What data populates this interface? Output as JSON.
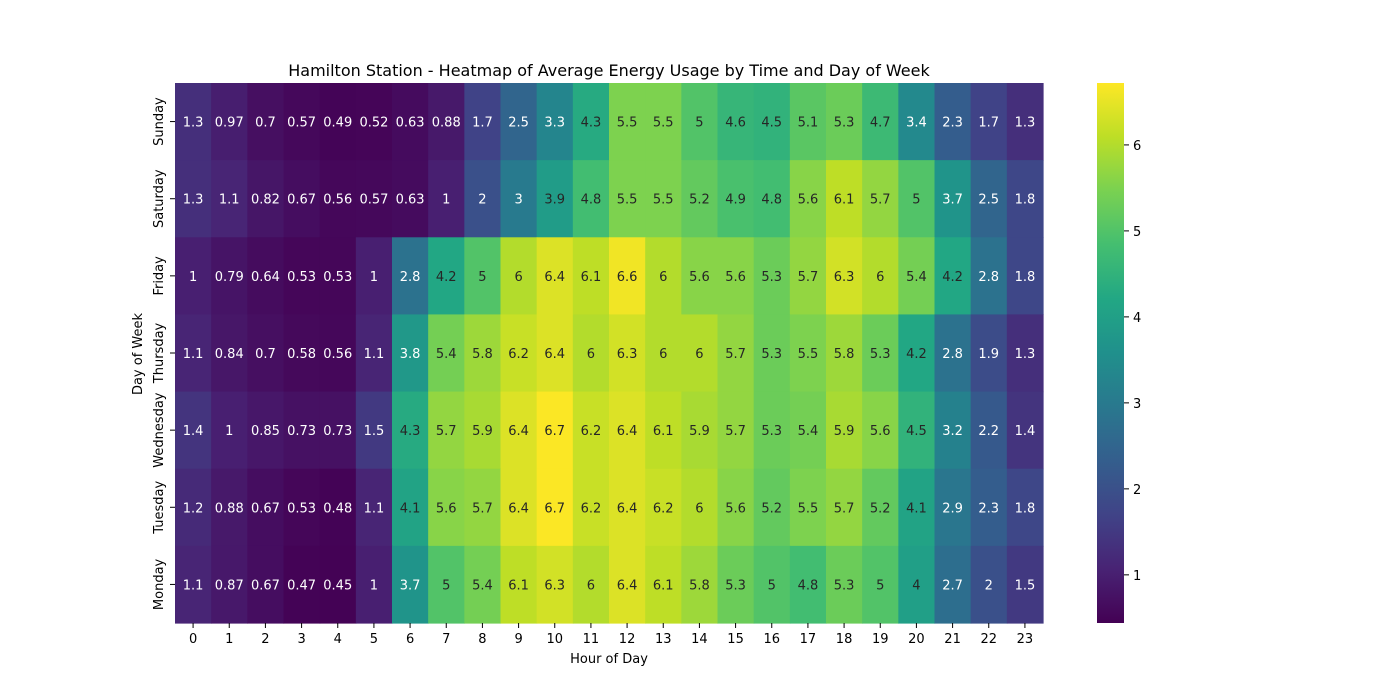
{
  "chart_data": {
    "type": "heatmap",
    "title": "Hamilton Station - Heatmap of Average Energy Usage by Time and Day of Week",
    "xlabel": "Hour of Day",
    "ylabel": "Day of Week",
    "x": [
      "0",
      "1",
      "2",
      "3",
      "4",
      "5",
      "6",
      "7",
      "8",
      "9",
      "10",
      "11",
      "12",
      "13",
      "14",
      "15",
      "16",
      "17",
      "18",
      "19",
      "20",
      "21",
      "22",
      "23"
    ],
    "y": [
      "Sunday",
      "Saturday",
      "Friday",
      "Thursday",
      "Wednesday",
      "Tuesday",
      "Monday"
    ],
    "values": [
      [
        1.3,
        0.97,
        0.7,
        0.57,
        0.49,
        0.52,
        0.63,
        0.88,
        1.7,
        2.5,
        3.3,
        4.3,
        5.5,
        5.5,
        5,
        4.6,
        4.5,
        5.1,
        5.3,
        4.7,
        3.4,
        2.3,
        1.7,
        1.3
      ],
      [
        1.3,
        1.1,
        0.82,
        0.67,
        0.56,
        0.57,
        0.63,
        1,
        2,
        3,
        3.9,
        4.8,
        5.5,
        5.5,
        5.2,
        4.9,
        4.8,
        5.6,
        6.1,
        5.7,
        5,
        3.7,
        2.5,
        1.8
      ],
      [
        1,
        0.79,
        0.64,
        0.53,
        0.53,
        1,
        2.8,
        4.2,
        5,
        6,
        6.4,
        6.1,
        6.6,
        6,
        5.6,
        5.6,
        5.3,
        5.7,
        6.3,
        6,
        5.4,
        4.2,
        2.8,
        1.8
      ],
      [
        1.1,
        0.84,
        0.7,
        0.58,
        0.56,
        1.1,
        3.8,
        5.4,
        5.8,
        6.2,
        6.4,
        6,
        6.3,
        6,
        6,
        5.7,
        5.3,
        5.5,
        5.8,
        5.3,
        4.2,
        2.8,
        1.9,
        1.3
      ],
      [
        1.4,
        1,
        0.85,
        0.73,
        0.73,
        1.5,
        4.3,
        5.7,
        5.9,
        6.4,
        6.7,
        6.2,
        6.4,
        6.1,
        5.9,
        5.7,
        5.3,
        5.4,
        5.9,
        5.6,
        4.5,
        3.2,
        2.2,
        1.4
      ],
      [
        1.2,
        0.88,
        0.67,
        0.53,
        0.48,
        1.1,
        4.1,
        5.6,
        5.7,
        6.4,
        6.7,
        6.2,
        6.4,
        6.2,
        6,
        5.6,
        5.2,
        5.5,
        5.7,
        5.2,
        4.1,
        2.9,
        2.3,
        1.8
      ],
      [
        1.1,
        0.87,
        0.67,
        0.47,
        0.45,
        1,
        3.7,
        5,
        5.4,
        6.1,
        6.3,
        6,
        6.4,
        6.1,
        5.8,
        5.3,
        5,
        4.8,
        5.3,
        5,
        4,
        2.7,
        2,
        1.5
      ]
    ],
    "colormap": "viridis",
    "vmin": 0.44,
    "vmax": 6.72,
    "colorbar_ticks": [
      1,
      2,
      3,
      4,
      5,
      6
    ],
    "colorbar_tick_labels": [
      "1",
      "2",
      "3",
      "4",
      "5",
      "6"
    ],
    "legend": "colorbar at right"
  }
}
